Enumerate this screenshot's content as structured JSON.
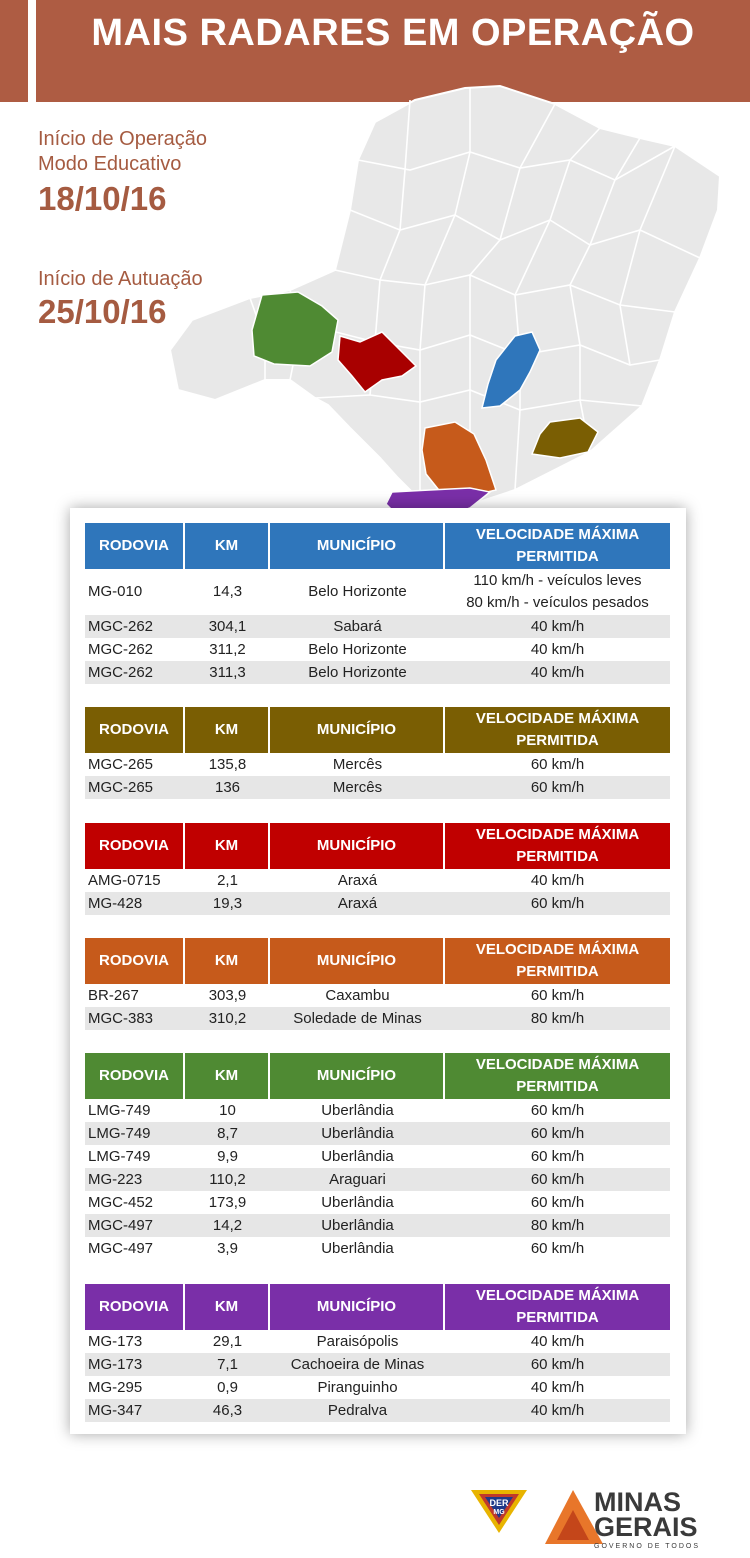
{
  "header": {
    "title": "MAIS RADARES EM OPERAÇÃO"
  },
  "info": {
    "label_operacao_1": "Início de Operação",
    "label_operacao_2": "Modo Educativo",
    "date_operacao": "18/10/16",
    "label_autuacao": "Início de Autuação",
    "date_autuacao": "25/10/16"
  },
  "colors": {
    "banner": "#ae5c43",
    "text_accent": "#a55b41",
    "blue": "#2f76bb",
    "olive": "#7a5e03",
    "red": "#c00000",
    "orange": "#c65a1b",
    "green": "#4f8a33",
    "purple": "#7a2fa8",
    "map_fill": "#e8e8e8"
  },
  "columns": {
    "rodovia": "RODOVIA",
    "km": "KM",
    "municipio": "MUNICÍPIO",
    "velocidade_1": "VELOCIDADE MÁXIMA",
    "velocidade_2": "PERMITIDA"
  },
  "tables": [
    {
      "color": "blue",
      "rows": [
        {
          "rodovia": "MG-010",
          "km": "14,3",
          "municipio": "Belo Horizonte",
          "velocidade": "110 km/h - veículos leves",
          "velocidade_2": "80 km/h - veículos pesados"
        },
        {
          "rodovia": "MGC-262",
          "km": "304,1",
          "municipio": "Sabará",
          "velocidade": "40 km/h"
        },
        {
          "rodovia": "MGC-262",
          "km": "311,2",
          "municipio": "Belo Horizonte",
          "velocidade": "40 km/h"
        },
        {
          "rodovia": "MGC-262",
          "km": "311,3",
          "municipio": "Belo Horizonte",
          "velocidade": "40 km/h"
        }
      ]
    },
    {
      "color": "olive",
      "rows": [
        {
          "rodovia": "MGC-265",
          "km": "135,8",
          "municipio": "Mercês",
          "velocidade": "60 km/h"
        },
        {
          "rodovia": "MGC-265",
          "km": "136",
          "municipio": "Mercês",
          "velocidade": "60 km/h"
        }
      ]
    },
    {
      "color": "red",
      "rows": [
        {
          "rodovia": "AMG-0715",
          "km": "2,1",
          "municipio": "Araxá",
          "velocidade": "40 km/h"
        },
        {
          "rodovia": "MG-428",
          "km": "19,3",
          "municipio": "Araxá",
          "velocidade": "60 km/h"
        }
      ]
    },
    {
      "color": "orange",
      "rows": [
        {
          "rodovia": "BR-267",
          "km": "303,9",
          "municipio": "Caxambu",
          "velocidade": "60 km/h"
        },
        {
          "rodovia": "MGC-383",
          "km": "310,2",
          "municipio": "Soledade de Minas",
          "velocidade": "80 km/h"
        }
      ]
    },
    {
      "color": "green",
      "rows": [
        {
          "rodovia": "LMG-749",
          "km": "10",
          "municipio": "Uberlândia",
          "velocidade": "60 km/h"
        },
        {
          "rodovia": "LMG-749",
          "km": "8,7",
          "municipio": "Uberlândia",
          "velocidade": "60 km/h"
        },
        {
          "rodovia": "LMG-749",
          "km": "9,9",
          "municipio": "Uberlândia",
          "velocidade": "60 km/h"
        },
        {
          "rodovia": "MG-223",
          "km": "110,2",
          "municipio": "Araguari",
          "velocidade": "60 km/h"
        },
        {
          "rodovia": "MGC-452",
          "km": "173,9",
          "municipio": "Uberlândia",
          "velocidade": "60 km/h"
        },
        {
          "rodovia": "MGC-497",
          "km": "14,2",
          "municipio": "Uberlândia",
          "velocidade": "80 km/h"
        },
        {
          "rodovia": "MGC-497",
          "km": "3,9",
          "municipio": "Uberlândia",
          "velocidade": "60 km/h"
        }
      ]
    },
    {
      "color": "purple",
      "rows": [
        {
          "rodovia": "MG-173",
          "km": "29,1",
          "municipio": "Paraisópolis",
          "velocidade": "40 km/h"
        },
        {
          "rodovia": "MG-173",
          "km": "7,1",
          "municipio": "Cachoeira de Minas",
          "velocidade": "60 km/h"
        },
        {
          "rodovia": "MG-295",
          "km": "0,9",
          "municipio": "Piranguinho",
          "velocidade": "40 km/h"
        },
        {
          "rodovia": "MG-347",
          "km": "46,3",
          "municipio": "Pedralva",
          "velocidade": "40 km/h"
        }
      ]
    }
  ],
  "footer": {
    "der_logo_1": "DER",
    "der_logo_2": "MG",
    "mg_logo_1": "MINAS",
    "mg_logo_2": "GERAIS",
    "mg_tagline": "GOVERNO DE TODOS",
    "der_icon": "der-mg-logo-icon",
    "mg_icon": "minas-gerais-logo-icon"
  }
}
